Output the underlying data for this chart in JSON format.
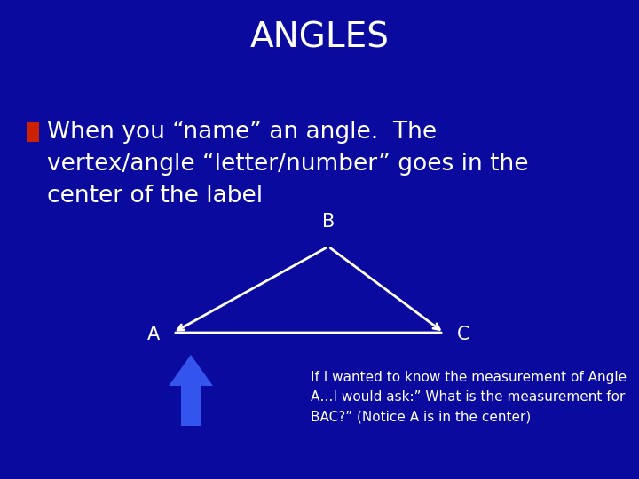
{
  "title": "ANGLES",
  "title_fontsize": 28,
  "title_color": "#FFFFFF",
  "bg_color": "#0a0a9f",
  "bullet_text_line1": "When you “name” an angle.  The",
  "bullet_text_line2": "vertex/angle “letter/number” goes in the",
  "bullet_text_line3": "center of the label",
  "bullet_color": "#CC2200",
  "text_color": "#FFFFFF",
  "text_fontsize": 19,
  "label_fontsize": 15,
  "triangle_color": "#FFFFFF",
  "triangle_linewidth": 2.0,
  "arrow_color": "#3355EE",
  "note_fontsize": 11,
  "note_text": "If I wanted to know the measurement of Angle\nA…I would ask:” What is the measurement for\nBAC?” (Notice A is in the center)"
}
